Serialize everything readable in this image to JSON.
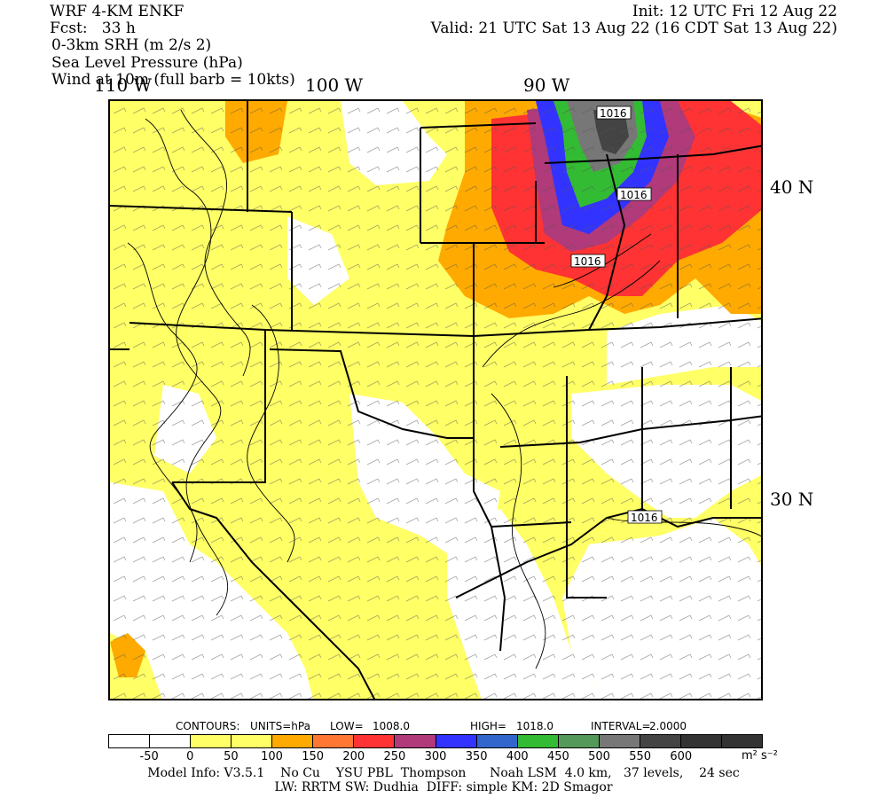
{
  "header": {
    "model": "WRF 4-KM ENKF",
    "fcst": "Fcst:   33 h",
    "field1": "0-3km SRH (m 2/s 2)",
    "field2": "Sea Level Pressure (hPa)",
    "field3": "Wind at 10m (full barb = 10kts)",
    "init": "Init: 12 UTC Fri 12 Aug 22",
    "valid": "Valid: 21 UTC Sat 13 Aug 22 (16 CDT Sat 13 Aug 22)"
  },
  "axes": {
    "lon_labels": [
      "110 W",
      "100 W",
      "90 W"
    ],
    "lat_labels": [
      "40 N",
      "30 N"
    ]
  },
  "isobar_labels": [
    "1016",
    "1016",
    "1016",
    "1016"
  ],
  "contour_info": {
    "contours": "CONTOURS:",
    "units": "UNITS=hPa",
    "low_label": "LOW=",
    "low_value": "1008.0",
    "high_label": "HIGH=",
    "high_value": "1018.0",
    "interval_label": "INTERVAL=",
    "interval_value": "2.0000"
  },
  "colorbar": {
    "colors": [
      "#ffffff",
      "#ffffff",
      "#ffff66",
      "#ffff66",
      "#ffaa00",
      "#ff7733",
      "#ff3333",
      "#b03a7a",
      "#3333ff",
      "#3366cc",
      "#33bb33",
      "#55995a",
      "#777777",
      "#444444",
      "#333333",
      "#333333"
    ],
    "labels": [
      "-50",
      "0",
      "50",
      "100",
      "150",
      "200",
      "250",
      "300",
      "350",
      "400",
      "450",
      "500",
      "550",
      "600"
    ],
    "units": "m² s⁻²"
  },
  "footer": {
    "line1": "Model Info: V3.5.1    No Cu    YSU PBL  Thompson      Noah LSM  4.0 km,   37 levels,    24 sec",
    "line2": "LW: RRTM SW: Dudhia  DIFF: simple KM: 2D Smagor"
  }
}
